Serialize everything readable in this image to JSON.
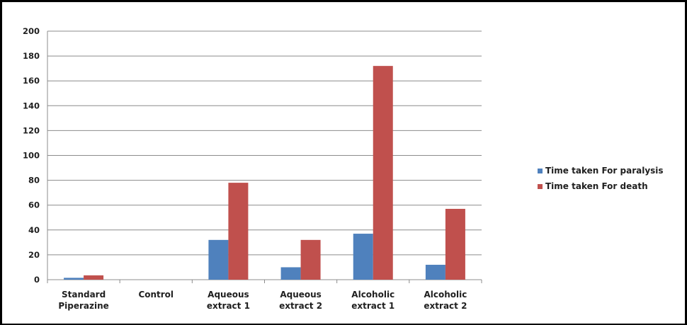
{
  "chart_data": {
    "type": "bar",
    "title": "",
    "xlabel": "",
    "ylabel": "",
    "ylim": [
      0,
      200
    ],
    "yticks": [
      0,
      20,
      40,
      60,
      80,
      100,
      120,
      140,
      160,
      180,
      200
    ],
    "grid": true,
    "legend_position": "right",
    "categories": [
      [
        "Standard",
        "Piperazine"
      ],
      [
        "Control"
      ],
      [
        "Aqueous",
        "extract 1"
      ],
      [
        "Aqueous",
        "extract 2"
      ],
      [
        "Alcoholic",
        "extract 1"
      ],
      [
        "Alcoholic",
        "extract 2"
      ]
    ],
    "series": [
      {
        "name": "Time taken For paralysis",
        "color": "#4f81bd",
        "values": [
          1.5,
          0,
          32,
          10,
          37,
          12
        ]
      },
      {
        "name": "Time taken For death",
        "color": "#c0504d",
        "values": [
          3.5,
          0,
          78,
          32,
          172,
          57
        ]
      }
    ]
  }
}
